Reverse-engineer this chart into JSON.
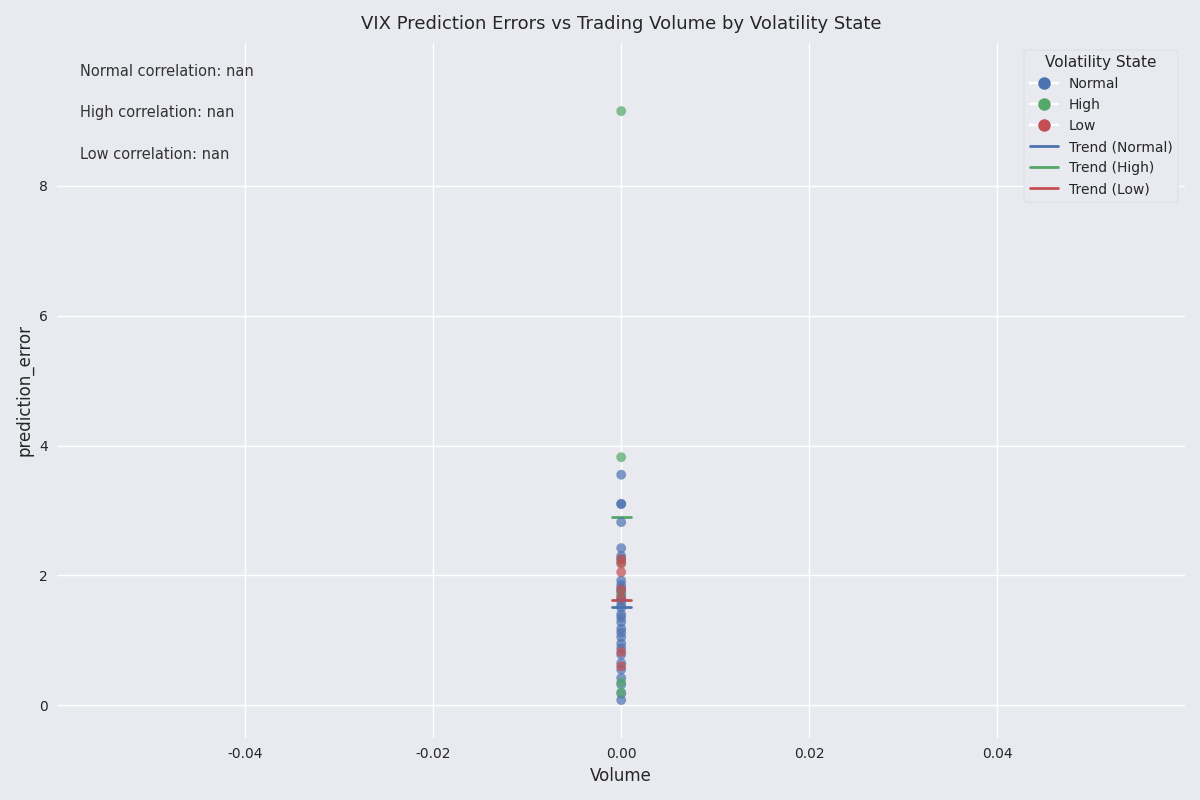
{
  "title": "VIX Prediction Errors vs Trading Volume by Volatility State",
  "xlabel": "Volume",
  "ylabel": "prediction_error",
  "background_color": "#e8eaf0",
  "annotations": [
    "Normal correlation: nan",
    "High correlation: nan",
    "Low correlation: nan"
  ],
  "legend_title": "Volatility State",
  "states": [
    "Normal",
    "High",
    "Low"
  ],
  "state_colors": {
    "Normal": "#4c72b0",
    "High": "#55a868",
    "Low": "#c44e52"
  },
  "normal_points": {
    "x": [
      0.0,
      0.0,
      0.0,
      0.0,
      0.0,
      0.0,
      0.0,
      0.0,
      0.0,
      0.0,
      0.0,
      0.0,
      0.0,
      0.0,
      0.0,
      0.0,
      0.0,
      0.0,
      0.0,
      0.0,
      0.0,
      0.0,
      0.0,
      0.0,
      0.0,
      0.0,
      0.0,
      0.0,
      0.0,
      0.0
    ],
    "y": [
      3.55,
      3.1,
      3.1,
      2.82,
      2.42,
      2.3,
      2.25,
      1.92,
      1.85,
      1.8,
      1.75,
      1.68,
      1.62,
      1.55,
      1.5,
      1.4,
      1.35,
      1.28,
      1.18,
      1.12,
      1.05,
      0.95,
      0.88,
      0.78,
      0.65,
      0.55,
      0.42,
      0.32,
      0.18,
      0.08
    ]
  },
  "high_points": {
    "x": [
      0.0,
      0.0,
      0.0,
      0.0,
      0.0,
      0.0
    ],
    "y": [
      9.15,
      3.82,
      2.2,
      1.72,
      0.35,
      0.2
    ]
  },
  "low_points": {
    "x": [
      0.0,
      0.0,
      0.0,
      0.0,
      0.0,
      0.0,
      0.0
    ],
    "y": [
      2.25,
      2.18,
      2.05,
      1.78,
      1.65,
      0.82,
      0.6
    ]
  },
  "xlim": [
    -0.06,
    0.06
  ],
  "ylim": [
    -0.5,
    10.2
  ],
  "yticks": [
    0,
    2,
    4,
    6,
    8
  ],
  "xticks": [
    -0.04,
    -0.02,
    0.0,
    0.02,
    0.04
  ],
  "marker_size": 50,
  "alpha": 0.7,
  "figsize": [
    12,
    8
  ],
  "dpi": 100,
  "grid_color": "#ffffff",
  "trend_linewidth": 2.0
}
